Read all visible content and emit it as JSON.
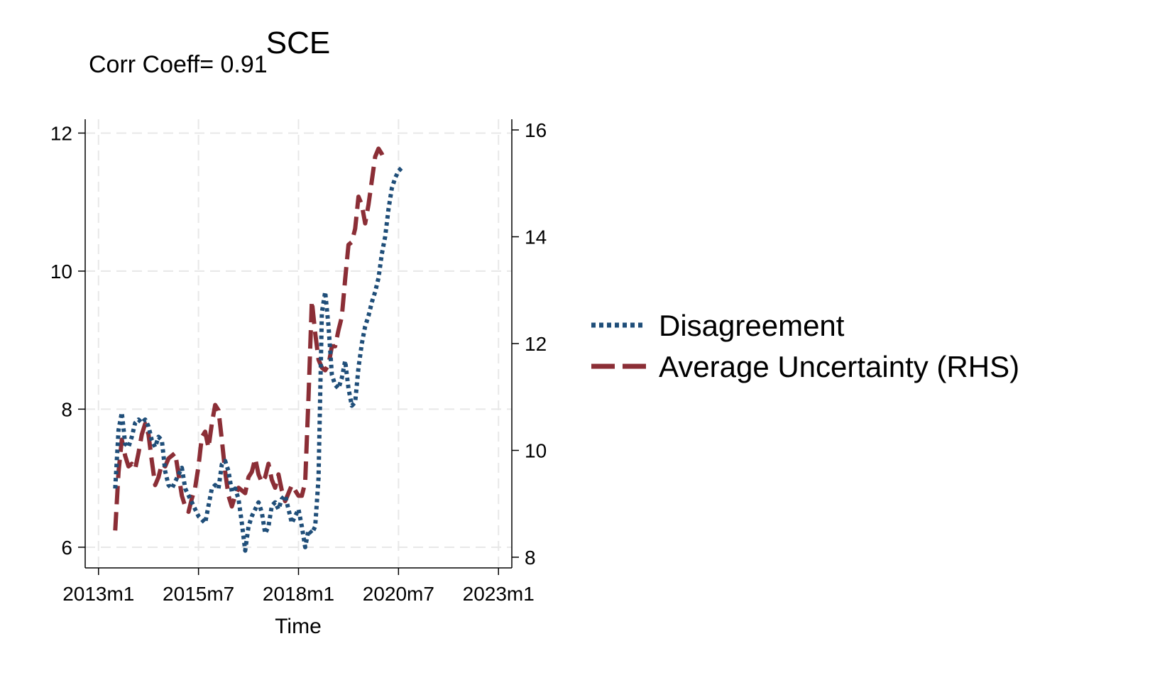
{
  "chart_data": {
    "type": "line",
    "title": "SCE",
    "subtitle": "Corr Coeff= 0.91",
    "xlabel": "Time",
    "ylabel_left": "",
    "ylabel_right": "",
    "x_ticks": [
      "2013m1",
      "2015m7",
      "2018m1",
      "2020m7",
      "2023m1"
    ],
    "y_left_ticks": [
      "6",
      "8",
      "10",
      "12"
    ],
    "y_right_ticks": [
      "8",
      "10",
      "12",
      "14",
      "16"
    ],
    "xlim": [
      "2012m9",
      "2023m5"
    ],
    "ylim_left": [
      5.7,
      12.2
    ],
    "ylim_right": [
      7.8,
      16.2
    ],
    "grid": true,
    "legend_position": "right",
    "series": [
      {
        "name": "Disagreement",
        "axis": "left",
        "color": "#1f4e79",
        "style": "dotted",
        "points": [
          [
            "2013m6",
            6.85
          ],
          [
            "2013m7",
            7.7
          ],
          [
            "2013m8",
            7.95
          ],
          [
            "2013m9",
            7.5
          ],
          [
            "2013m10",
            7.45
          ],
          [
            "2013m11",
            7.6
          ],
          [
            "2013m12",
            7.8
          ],
          [
            "2014m1",
            7.85
          ],
          [
            "2014m2",
            7.8
          ],
          [
            "2014m3",
            7.85
          ],
          [
            "2014m4",
            7.75
          ],
          [
            "2014m5",
            7.55
          ],
          [
            "2014m6",
            7.45
          ],
          [
            "2014m7",
            7.6
          ],
          [
            "2014m8",
            7.55
          ],
          [
            "2014m9",
            7.1
          ],
          [
            "2014m10",
            6.9
          ],
          [
            "2014m11",
            6.85
          ],
          [
            "2014m12",
            6.95
          ],
          [
            "2015m1",
            7.05
          ],
          [
            "2015m2",
            7.15
          ],
          [
            "2015m3",
            6.85
          ],
          [
            "2015m4",
            6.75
          ],
          [
            "2015m5",
            6.65
          ],
          [
            "2015m6",
            6.55
          ],
          [
            "2015m7",
            6.45
          ],
          [
            "2015m8",
            6.4
          ],
          [
            "2015m9",
            6.35
          ],
          [
            "2015m10",
            6.6
          ],
          [
            "2015m11",
            6.85
          ],
          [
            "2015m12",
            6.9
          ],
          [
            "2016m1",
            6.85
          ],
          [
            "2016m2",
            7.2
          ],
          [
            "2016m3",
            7.25
          ],
          [
            "2016m4",
            7.1
          ],
          [
            "2016m5",
            6.8
          ],
          [
            "2016m6",
            6.85
          ],
          [
            "2016m7",
            6.7
          ],
          [
            "2016m8",
            6.35
          ],
          [
            "2016m9",
            5.95
          ],
          [
            "2016m10",
            6.3
          ],
          [
            "2016m11",
            6.45
          ],
          [
            "2016m12",
            6.55
          ],
          [
            "2017m1",
            6.65
          ],
          [
            "2017m2",
            6.5
          ],
          [
            "2017m3",
            6.2
          ],
          [
            "2017m4",
            6.3
          ],
          [
            "2017m5",
            6.6
          ],
          [
            "2017m6",
            6.65
          ],
          [
            "2017m7",
            6.55
          ],
          [
            "2017m8",
            6.7
          ],
          [
            "2017m9",
            6.75
          ],
          [
            "2017m10",
            6.55
          ],
          [
            "2017m11",
            6.35
          ],
          [
            "2017m12",
            6.45
          ],
          [
            "2018m1",
            6.55
          ],
          [
            "2018m2",
            6.3
          ],
          [
            "2018m3",
            6.0
          ],
          [
            "2018m4",
            6.25
          ],
          [
            "2018m5",
            6.2
          ],
          [
            "2018m6",
            6.3
          ],
          [
            "2018m7",
            7.0
          ],
          [
            "2018m8",
            9.4
          ],
          [
            "2018m9",
            9.7
          ],
          [
            "2018m10",
            9.2
          ],
          [
            "2018m11",
            8.5
          ],
          [
            "2018m12",
            8.35
          ],
          [
            "2019m1",
            8.3
          ],
          [
            "2019m2",
            8.45
          ],
          [
            "2019m3",
            8.7
          ],
          [
            "2019m4",
            8.3
          ],
          [
            "2019m5",
            8.05
          ],
          [
            "2019m6",
            8.1
          ],
          [
            "2019m7",
            8.6
          ],
          [
            "2019m8",
            8.95
          ],
          [
            "2019m9",
            9.2
          ],
          [
            "2019m10",
            9.35
          ],
          [
            "2019m11",
            9.55
          ],
          [
            "2019m12",
            9.7
          ],
          [
            "2020m1",
            9.9
          ],
          [
            "2020m2",
            10.25
          ],
          [
            "2020m3",
            10.5
          ],
          [
            "2020m4",
            10.9
          ],
          [
            "2020m5",
            11.2
          ],
          [
            "2020m6",
            11.35
          ],
          [
            "2020m7",
            11.45
          ],
          [
            "2020m8",
            11.5
          ]
        ]
      },
      {
        "name": "Average Uncertainty (RHS)",
        "axis": "right",
        "color": "#8b2e36",
        "style": "dashed",
        "points": [
          [
            "2013m6",
            8.5
          ],
          [
            "2013m7",
            9.6
          ],
          [
            "2013m8",
            10.2
          ],
          [
            "2013m9",
            9.9
          ],
          [
            "2013m10",
            9.7
          ],
          [
            "2013m11",
            9.75
          ],
          [
            "2013m12",
            9.65
          ],
          [
            "2014m1",
            9.95
          ],
          [
            "2014m2",
            10.3
          ],
          [
            "2014m3",
            10.5
          ],
          [
            "2014m4",
            10.3
          ],
          [
            "2014m5",
            9.8
          ],
          [
            "2014m6",
            9.35
          ],
          [
            "2014m7",
            9.5
          ],
          [
            "2014m8",
            9.75
          ],
          [
            "2014m9",
            9.7
          ],
          [
            "2014m10",
            9.85
          ],
          [
            "2014m11",
            9.9
          ],
          [
            "2014m12",
            9.95
          ],
          [
            "2015m1",
            9.55
          ],
          [
            "2015m2",
            9.15
          ],
          [
            "2015m3",
            8.95
          ],
          [
            "2015m4",
            8.85
          ],
          [
            "2015m5",
            9.1
          ],
          [
            "2015m6",
            9.3
          ],
          [
            "2015m7",
            9.7
          ],
          [
            "2015m8",
            10.25
          ],
          [
            "2015m9",
            10.35
          ],
          [
            "2015m10",
            10.05
          ],
          [
            "2015m11",
            10.5
          ],
          [
            "2015m12",
            10.85
          ],
          [
            "2016m1",
            10.75
          ],
          [
            "2016m2",
            10.2
          ],
          [
            "2016m3",
            9.6
          ],
          [
            "2016m4",
            9.15
          ],
          [
            "2016m5",
            8.95
          ],
          [
            "2016m6",
            9.15
          ],
          [
            "2016m7",
            9.3
          ],
          [
            "2016m8",
            9.25
          ],
          [
            "2016m9",
            9.2
          ],
          [
            "2016m10",
            9.5
          ],
          [
            "2016m11",
            9.6
          ],
          [
            "2016m12",
            9.85
          ],
          [
            "2017m1",
            9.55
          ],
          [
            "2017m2",
            9.4
          ],
          [
            "2017m3",
            9.5
          ],
          [
            "2017m4",
            9.75
          ],
          [
            "2017m5",
            9.45
          ],
          [
            "2017m6",
            9.3
          ],
          [
            "2017m7",
            9.55
          ],
          [
            "2017m8",
            9.25
          ],
          [
            "2017m9",
            9.05
          ],
          [
            "2017m10",
            9.2
          ],
          [
            "2017m11",
            9.35
          ],
          [
            "2017m12",
            9.25
          ],
          [
            "2018m1",
            9.15
          ],
          [
            "2018m2",
            9.15
          ],
          [
            "2018m3",
            9.4
          ],
          [
            "2018m4",
            11.0
          ],
          [
            "2018m5",
            12.8
          ],
          [
            "2018m6",
            12.2
          ],
          [
            "2018m7",
            11.7
          ],
          [
            "2018m8",
            11.55
          ],
          [
            "2018m9",
            11.5
          ],
          [
            "2018m10",
            11.6
          ],
          [
            "2018m11",
            11.95
          ],
          [
            "2018m12",
            11.95
          ],
          [
            "2019m1",
            12.25
          ],
          [
            "2019m2",
            12.5
          ],
          [
            "2019m3",
            13.2
          ],
          [
            "2019m4",
            13.85
          ],
          [
            "2019m5",
            13.9
          ],
          [
            "2019m6",
            14.15
          ],
          [
            "2019m7",
            14.75
          ],
          [
            "2019m8",
            14.6
          ],
          [
            "2019m9",
            14.25
          ],
          [
            "2019m10",
            14.6
          ],
          [
            "2019m11",
            15.05
          ],
          [
            "2019m12",
            15.5
          ],
          [
            "2020m1",
            15.65
          ],
          [
            "2020m2",
            15.55
          ],
          [
            "2020m3",
            15.4
          ]
        ]
      }
    ]
  }
}
